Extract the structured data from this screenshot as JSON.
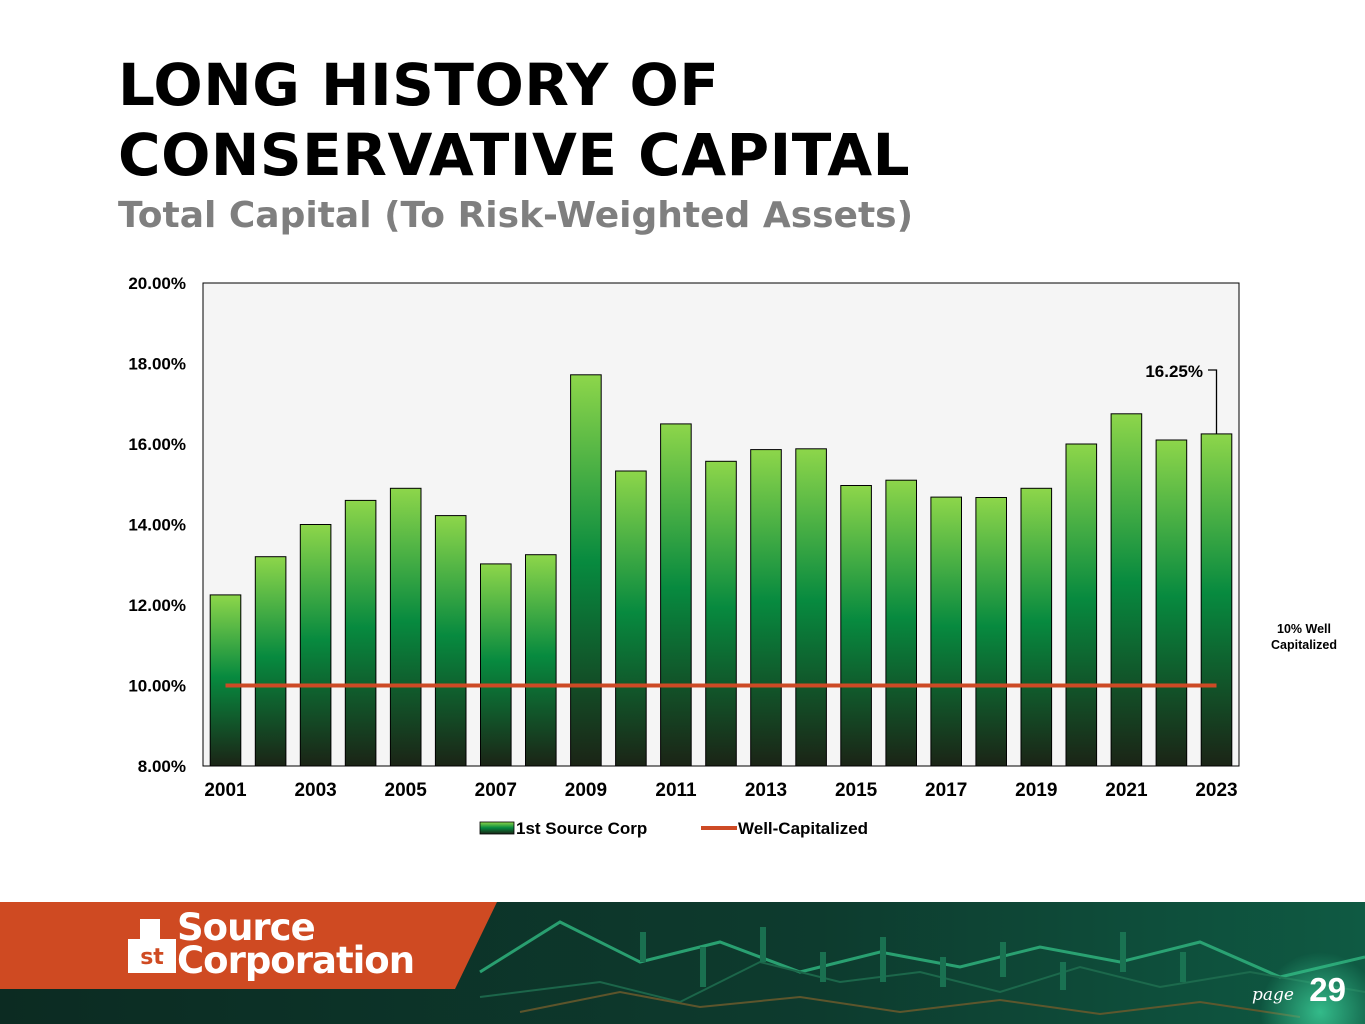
{
  "header": {
    "title_line1": "LONG HISTORY OF",
    "title_line2": "CONSERVATIVE CAPITAL",
    "subtitle": "Total Capital (To Risk-Weighted Assets)"
  },
  "annotation": {
    "callout": "16.25%",
    "well_cap_line1": "10% Well",
    "well_cap_line2": "Capitalized"
  },
  "chart_data": {
    "type": "bar",
    "title": "Total Capital (To Risk-Weighted Assets)",
    "categories": [
      "2001",
      "2002",
      "2003",
      "2004",
      "2005",
      "2006",
      "2007",
      "2008",
      "2009",
      "2010",
      "2011",
      "2012",
      "2013",
      "2014",
      "2015",
      "2016",
      "2017",
      "2018",
      "2019",
      "2020",
      "2021",
      "2022",
      "2023"
    ],
    "x_tick_labels": [
      "2001",
      "2003",
      "2005",
      "2007",
      "2009",
      "2011",
      "2013",
      "2015",
      "2017",
      "2019",
      "2021",
      "2023"
    ],
    "series": [
      {
        "name": "1st Source Corp",
        "type": "bar",
        "values": [
          12.25,
          13.2,
          14.0,
          14.6,
          14.9,
          14.22,
          13.02,
          13.25,
          17.72,
          15.33,
          16.5,
          15.57,
          15.86,
          15.88,
          14.97,
          15.1,
          14.68,
          14.67,
          14.9,
          16.0,
          16.75,
          16.1,
          16.25
        ]
      },
      {
        "name": "Well-Capitalized",
        "type": "line",
        "values": [
          10,
          10,
          10,
          10,
          10,
          10,
          10,
          10,
          10,
          10,
          10,
          10,
          10,
          10,
          10,
          10,
          10,
          10,
          10,
          10,
          10,
          10,
          10
        ]
      }
    ],
    "y_tick_labels": [
      "8.00%",
      "10.00%",
      "12.00%",
      "14.00%",
      "16.00%",
      "18.00%",
      "20.00%"
    ],
    "ylim": [
      8,
      20
    ],
    "ylabel": "",
    "xlabel": "",
    "legend_position": "bottom-center",
    "colors": {
      "bar_top": "#8dd64a",
      "bar_mid": "#078a3f",
      "bar_bottom": "#1b2416",
      "line": "#cd4a25",
      "plot_bg": "#f5f5f5"
    }
  },
  "footer": {
    "logo_st": "st",
    "logo_line1": "Source",
    "logo_line2": "Corporation",
    "page_label": "page",
    "page_number": "29",
    "brand_color": "#cf4a22"
  }
}
